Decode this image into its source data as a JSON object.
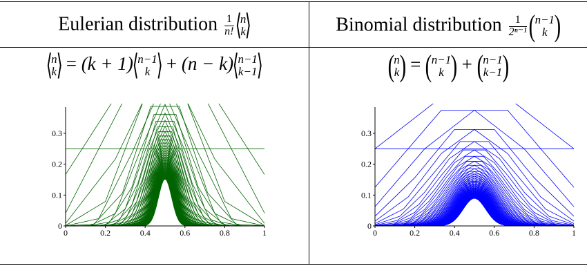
{
  "header": {
    "eulerian_title": "Eulerian distribution",
    "binomial_title": "Binomial distribution"
  },
  "formulas": {
    "eulerian_norm": {
      "num": "1",
      "den": "n!",
      "top": "n",
      "bottom": "k"
    },
    "binomial_norm": {
      "num": "1",
      "den": "2ⁿ⁻¹",
      "top": "n−1",
      "bottom": "k"
    },
    "eulerian_recurrence": {
      "lhs_top": "n",
      "lhs_bottom": "k",
      "eq": "=",
      "t1_coef": "(k + 1)",
      "t1_top": "n−1",
      "t1_bottom": "k",
      "plus": "+",
      "t2_coef": "(n − k)",
      "t2_top": "n−1",
      "t2_bottom": "k−1"
    },
    "binomial_recurrence": {
      "lhs_top": "n",
      "lhs_bottom": "k",
      "eq": "=",
      "t1_top": "n−1",
      "t1_bottom": "k",
      "plus": "+",
      "t2_top": "n−1",
      "t2_bottom": "k−1"
    }
  },
  "chart_data": [
    {
      "type": "line",
      "panel": "eulerian",
      "color": "#006400",
      "xlim": [
        0,
        1
      ],
      "ylim": [
        0,
        0.385
      ],
      "xticks": [
        "0",
        "0.2",
        "0.4",
        "0.6",
        "0.8",
        "1"
      ],
      "yticks": [
        "0",
        "0.1",
        "0.2",
        "0.3"
      ],
      "series_description": "normalized Eulerian numbers, n = 2..80, k/(n-1) vs A(n,k)/n!",
      "n_range": [
        2,
        80
      ]
    },
    {
      "type": "line",
      "panel": "binomial",
      "color": "#0000ff",
      "xlim": [
        0,
        1
      ],
      "ylim": [
        0,
        0.385
      ],
      "xticks": [
        "0",
        "0.2",
        "0.4",
        "0.6",
        "0.8",
        "1"
      ],
      "yticks": [
        "0",
        "0.1",
        "0.2",
        "0.3"
      ],
      "series_description": "normalized binomial coefficients, n = 2..80, k/(n-1) vs C(n-1,k)/2^(n-1)",
      "n_range": [
        2,
        80
      ]
    }
  ]
}
